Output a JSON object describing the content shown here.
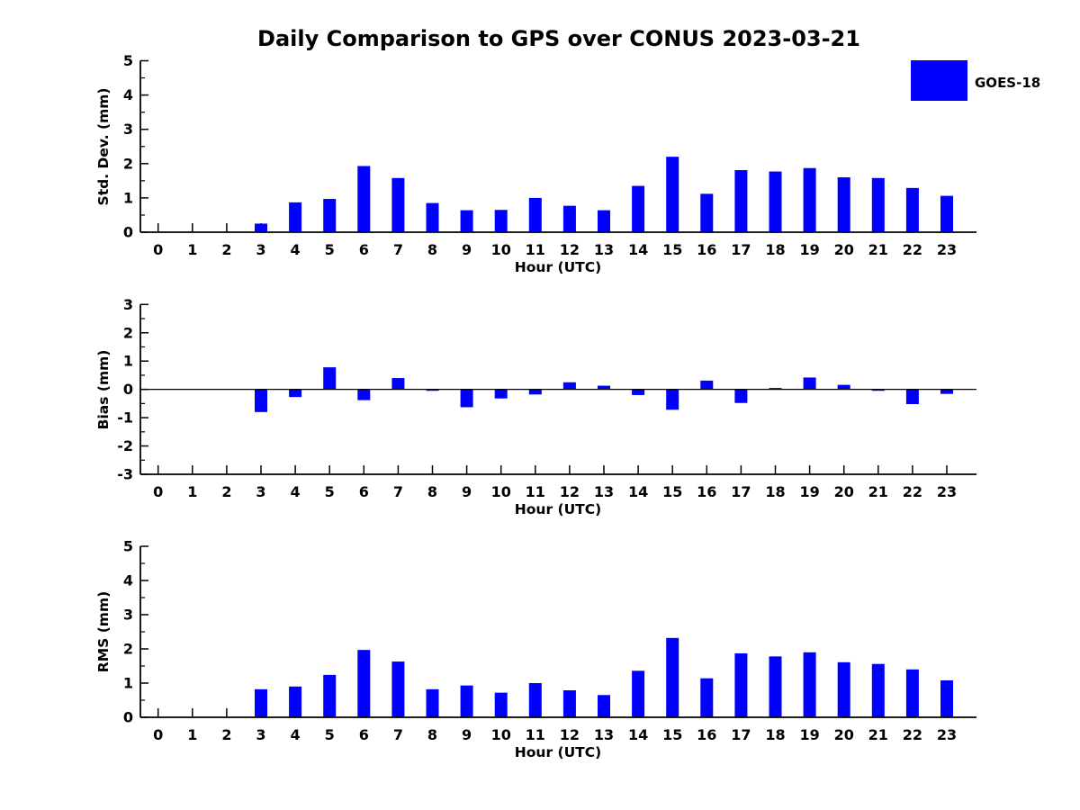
{
  "title": "Daily Comparison to GPS over CONUS 2023-03-21",
  "legend": {
    "label": "GOES-18",
    "color": "#0000ff"
  },
  "colors": {
    "bar": "#0000ff",
    "axis": "#000000",
    "background": "#ffffff"
  },
  "chart_data": [
    {
      "type": "bar",
      "name": "std-dev",
      "series": "GOES-18",
      "ylabel": "Std. Dev. (mm)",
      "xlabel": "Hour (UTC)",
      "x": [
        0,
        1,
        2,
        3,
        4,
        5,
        6,
        7,
        8,
        9,
        10,
        11,
        12,
        13,
        14,
        15,
        16,
        17,
        18,
        19,
        20,
        21,
        22,
        23
      ],
      "values": [
        0,
        0,
        0,
        0.25,
        0.87,
        0.97,
        1.93,
        1.58,
        0.85,
        0.64,
        0.65,
        1.0,
        0.77,
        0.64,
        1.35,
        2.2,
        1.12,
        1.81,
        1.77,
        1.87,
        1.6,
        1.58,
        1.29,
        1.06
      ],
      "ylim": [
        0,
        5
      ],
      "yticks": [
        0,
        1,
        2,
        3,
        4,
        5
      ],
      "y_minor_step": 0.5,
      "zero_line": false,
      "legend_position": "upper right outside"
    },
    {
      "type": "bar",
      "name": "bias",
      "series": "GOES-18",
      "ylabel": "Bias (mm)",
      "xlabel": "Hour (UTC)",
      "x": [
        0,
        1,
        2,
        3,
        4,
        5,
        6,
        7,
        8,
        9,
        10,
        11,
        12,
        13,
        14,
        15,
        16,
        17,
        18,
        19,
        20,
        21,
        22,
        23
      ],
      "values": [
        0,
        0,
        0,
        -0.8,
        -0.27,
        0.78,
        -0.38,
        0.4,
        -0.05,
        -0.63,
        -0.32,
        -0.18,
        0.25,
        0.13,
        -0.2,
        -0.72,
        0.31,
        -0.48,
        0.05,
        0.42,
        0.16,
        -0.05,
        -0.52,
        -0.16
      ],
      "ylim": [
        -3,
        3
      ],
      "yticks": [
        -3,
        -2,
        -1,
        0,
        1,
        2,
        3
      ],
      "y_minor_step": 0.5,
      "zero_line": true
    },
    {
      "type": "bar",
      "name": "rms",
      "series": "GOES-18",
      "ylabel": "RMS (mm)",
      "xlabel": "Hour (UTC)",
      "x": [
        0,
        1,
        2,
        3,
        4,
        5,
        6,
        7,
        8,
        9,
        10,
        11,
        12,
        13,
        14,
        15,
        16,
        17,
        18,
        19,
        20,
        21,
        22,
        23
      ],
      "values": [
        0,
        0,
        0,
        0.82,
        0.9,
        1.24,
        1.97,
        1.63,
        0.82,
        0.93,
        0.72,
        1.0,
        0.79,
        0.65,
        1.36,
        2.32,
        1.14,
        1.87,
        1.78,
        1.9,
        1.61,
        1.56,
        1.4,
        1.08
      ],
      "ylim": [
        0,
        5
      ],
      "yticks": [
        0,
        1,
        2,
        3,
        4,
        5
      ],
      "y_minor_step": 0.5,
      "zero_line": false
    }
  ]
}
